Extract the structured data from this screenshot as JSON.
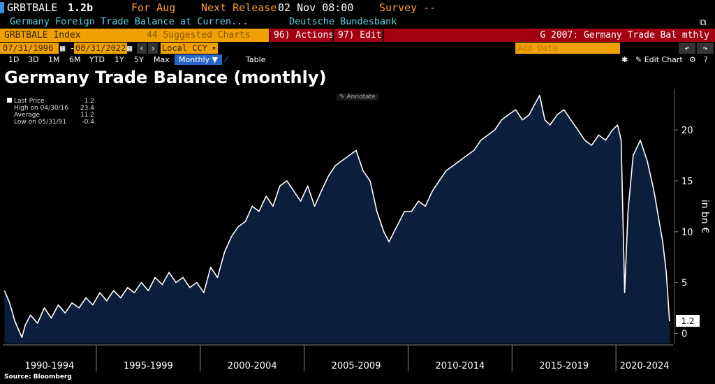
{
  "header": {
    "ticker": "GRBTBALE",
    "last_value": "1.2b",
    "for_label": "For Aug",
    "next_release_label": "Next Release",
    "next_release_date": "02 Nov 08:00",
    "survey_label": "Survey --",
    "description": "Germany Foreign Trade Balance at Curren...",
    "source_name": "Deutsche Bundesbank"
  },
  "toolbar": {
    "index_label": "GRBTBALE Index",
    "suggested_label": "44 Suggested Charts",
    "actions_label": "96) Actions",
    "edit_label": "97) Edit",
    "chart_name": "G 2007: Germany Trade Bal mthly"
  },
  "range": {
    "start_date": "07/31/1990",
    "end_date": "08/31/2022",
    "currency": "Local CCY",
    "add_data_placeholder": "Add Data"
  },
  "periods": {
    "items": [
      "1D",
      "3D",
      "1M",
      "6M",
      "YTD",
      "1Y",
      "5Y",
      "Max"
    ],
    "frequency": "Monthly",
    "table_label": "Table",
    "edit_chart_label": "Edit Chart"
  },
  "annotate_label": "Annotate",
  "legend": {
    "last_label": "Last Price",
    "last_value": "1.2",
    "high_label": "High on 04/30/16",
    "high_value": "23.4",
    "avg_label": "Average",
    "avg_value": "11.2",
    "low_label": "Low on 05/31/91",
    "low_value": "-0.4"
  },
  "source": "Source: Bloomberg",
  "colors": {
    "area_fill": "#0b1f3d",
    "line": "#ffffff",
    "orange": "#ff9d2e",
    "cyan": "#5fd4e6",
    "red_bar": "#a30012",
    "yellow": "#f0a000"
  },
  "chart_data": {
    "type": "area",
    "title": "Germany Trade Balance (monthly)",
    "ylabel": "in bn €",
    "ylim": [
      -1,
      24
    ],
    "yticks": [
      0,
      5,
      10,
      15,
      20
    ],
    "x_group_labels": [
      "1990-1994",
      "1995-1999",
      "2000-2004",
      "2005-2009",
      "2010-2014",
      "2015-2019",
      "2020-2024"
    ],
    "last_value_label": "1.2",
    "grid": false,
    "series": [
      {
        "x": [
          1990.58,
          1990.83,
          1991.08,
          1991.42,
          1991.58,
          1991.83,
          1992.17,
          1992.5,
          1992.83,
          1993.17,
          1993.5,
          1993.83,
          1994.17,
          1994.5,
          1994.83,
          1995.17,
          1995.5,
          1995.83,
          1996.17,
          1996.5,
          1996.83,
          1997.17,
          1997.5,
          1997.83,
          1998.17,
          1998.5,
          1998.83,
          1999.17,
          1999.5,
          1999.83,
          2000.17,
          2000.5,
          2000.83,
          2001.17,
          2001.5,
          2001.83,
          2002.17,
          2002.5,
          2002.83,
          2003.17,
          2003.5,
          2003.83,
          2004.17,
          2004.5,
          2004.83,
          2005.17,
          2005.5,
          2005.83,
          2006.17,
          2006.5,
          2006.83,
          2007.17,
          2007.5,
          2007.83,
          2008.17,
          2008.5,
          2008.83,
          2009.08,
          2009.33,
          2009.58,
          2009.83,
          2010.17,
          2010.5,
          2010.83,
          2011.17,
          2011.5,
          2011.83,
          2012.17,
          2012.5,
          2012.83,
          2013.17,
          2013.5,
          2013.83,
          2014.17,
          2014.5,
          2014.83,
          2015.17,
          2015.5,
          2015.83,
          2016.08,
          2016.33,
          2016.58,
          2016.83,
          2017.17,
          2017.5,
          2017.83,
          2018.17,
          2018.5,
          2018.83,
          2019.17,
          2019.5,
          2019.83,
          2020.08,
          2020.25,
          2020.42,
          2020.58,
          2020.83,
          2021.17,
          2021.5,
          2021.83,
          2022.08,
          2022.25,
          2022.42,
          2022.58
        ],
        "values": [
          4.2,
          3.0,
          1.2,
          -0.4,
          0.8,
          1.8,
          1.0,
          2.5,
          1.5,
          2.8,
          2.0,
          3.0,
          2.5,
          3.5,
          2.8,
          4.0,
          3.2,
          4.2,
          3.5,
          4.5,
          4.0,
          5.0,
          4.2,
          5.5,
          4.8,
          6.0,
          5.0,
          5.5,
          4.5,
          5.0,
          4.0,
          6.5,
          5.5,
          8.0,
          9.5,
          10.5,
          11.0,
          12.5,
          12.0,
          13.5,
          12.5,
          14.5,
          15.0,
          14.0,
          13.0,
          14.5,
          12.5,
          14.0,
          15.5,
          16.5,
          17.0,
          17.5,
          18.0,
          16.0,
          15.0,
          12.0,
          10.0,
          9.0,
          10.0,
          11.0,
          12.0,
          12.0,
          13.0,
          12.5,
          14.0,
          15.0,
          16.0,
          16.5,
          17.0,
          17.5,
          18.0,
          19.0,
          19.5,
          20.0,
          21.0,
          21.5,
          22.0,
          21.0,
          21.5,
          22.5,
          23.4,
          21.0,
          20.5,
          21.5,
          22.0,
          21.0,
          20.0,
          19.0,
          18.5,
          19.5,
          19.0,
          20.0,
          20.5,
          19.0,
          4.0,
          12.0,
          17.5,
          19.0,
          17.0,
          14.0,
          11.0,
          9.0,
          6.0,
          1.2
        ]
      }
    ]
  }
}
